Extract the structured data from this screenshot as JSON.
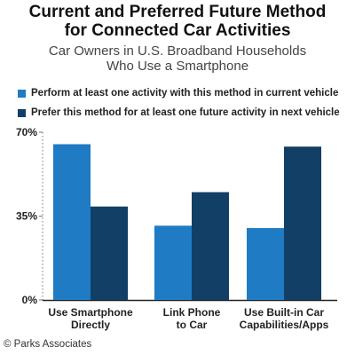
{
  "credit": "© Parks Associates",
  "chart_data": {
    "type": "bar",
    "title": "Current and Preferred Future Method\nfor Connected Car Activities",
    "subtitle": "Car Owners in U.S. Broadband Households\nWho Use a Smartphone",
    "categories": [
      "Use Smartphone\nDirectly",
      "Link Phone\nto Car",
      "Use Built-in Car\nCapabilities/Apps"
    ],
    "series": [
      {
        "name": "Perform at least one activity with this method in current vehicle",
        "color": "#1f7bc4",
        "values": [
          65,
          31,
          30
        ]
      },
      {
        "name": "Prefer this method for at least one future activity in next vehicle",
        "color": "#123f66",
        "values": [
          39,
          45,
          64
        ]
      }
    ],
    "ylim": [
      0,
      70
    ],
    "yticks": [
      0,
      35,
      70
    ],
    "ytick_labels": [
      "0%",
      "35%",
      "70%"
    ],
    "grid": false,
    "legend_position": "top"
  }
}
